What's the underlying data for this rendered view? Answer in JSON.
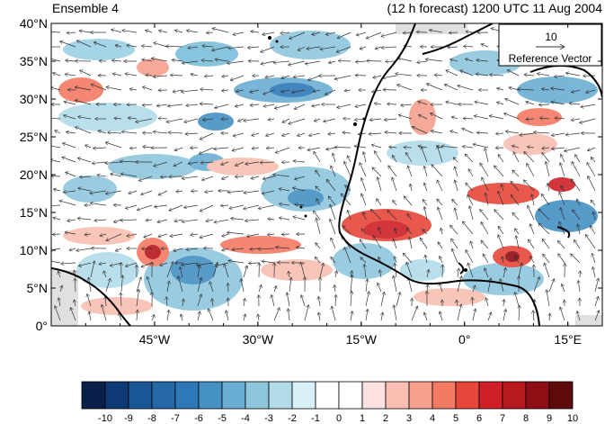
{
  "header": {
    "left_title": "Ensemble 4",
    "right_title": "(12 h forecast) 1200 UTC 11 Aug 2004"
  },
  "map": {
    "lon_range": [
      -60,
      20
    ],
    "lat_range": [
      0,
      40
    ],
    "lat_labels": [
      "0°",
      "5°N",
      "10°N",
      "15°N",
      "20°N",
      "25°N",
      "30°N",
      "35°N",
      "40°N"
    ],
    "lon_labels": [
      "45°W",
      "30°W",
      "15°W",
      "0°",
      "15°E"
    ],
    "lon_label_values": [
      -45,
      -30,
      -15,
      0,
      15
    ],
    "reference_vector": {
      "value": "10",
      "label": "Reference Vector"
    },
    "colors": {
      "coast": "#000000",
      "vector": "#333333"
    }
  },
  "colorbar": {
    "labels": [
      "-10",
      "-9",
      "-8",
      "-7",
      "-6",
      "-5",
      "-4",
      "-3",
      "-2",
      "-1",
      "0",
      "1",
      "2",
      "3",
      "4",
      "5",
      "6",
      "7",
      "8",
      "9",
      "10"
    ],
    "colors": [
      "#08204a",
      "#0d3a75",
      "#1a5796",
      "#2468a8",
      "#2f78b8",
      "#4591c4",
      "#6aaed3",
      "#8ec6de",
      "#b3dceb",
      "#d9f0f8",
      "#ffffff",
      "#ffffff",
      "#fde0e2",
      "#f9bfb2",
      "#f7a08e",
      "#f37a63",
      "#e7473a",
      "#cf2027",
      "#b8191e",
      "#8e0e16",
      "#5e0a0a"
    ]
  }
}
